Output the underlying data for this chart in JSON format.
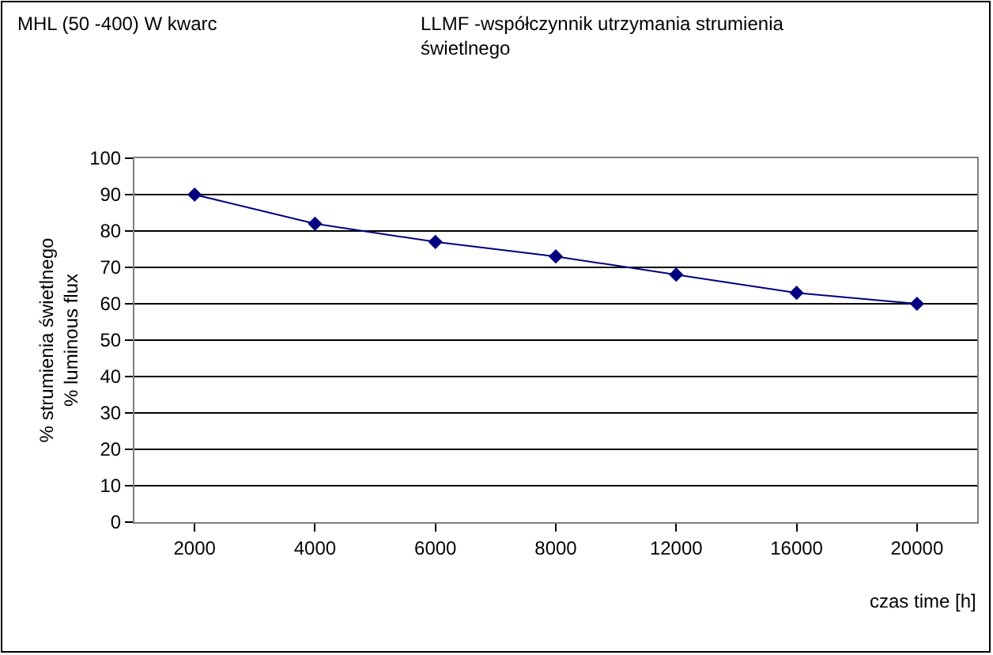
{
  "chart_data": {
    "type": "line",
    "title": "MHL (50 -400) W kwarc",
    "subtitle": "LLMF -współczynnik utrzymania strumienia\nświetlnego",
    "xlabel": "czas time [h]",
    "ylabel": "% strumienia świetlnego\n% luminous flux",
    "categories": [
      "2000",
      "4000",
      "6000",
      "8000",
      "12000",
      "16000",
      "20000"
    ],
    "series": [
      {
        "color": "#000080",
        "values": [
          90,
          82,
          77,
          73,
          68,
          63,
          60
        ]
      }
    ],
    "ylim": [
      0,
      100
    ],
    "yticks": [
      0,
      10,
      20,
      30,
      40,
      50,
      60,
      70,
      80,
      90,
      100
    ],
    "grid": "y",
    "marker": "diamond",
    "line_style": "solid",
    "legend": false
  }
}
